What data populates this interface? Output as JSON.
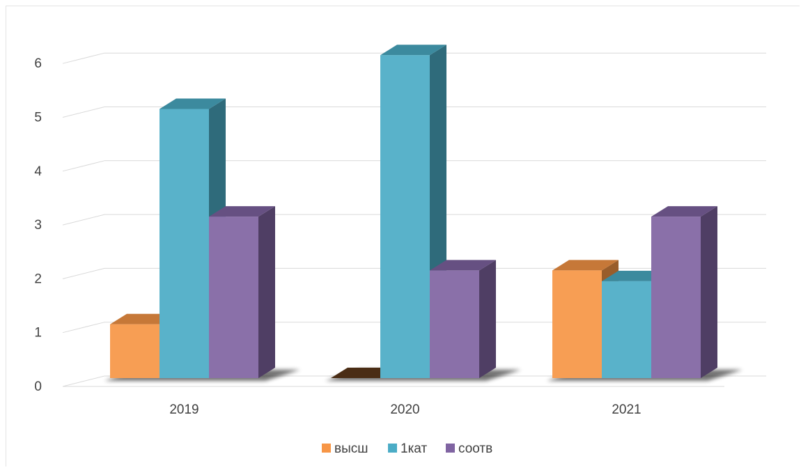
{
  "chart_data": {
    "type": "bar",
    "style": "3d-clustered-column",
    "title": "",
    "xlabel": "",
    "ylabel": "",
    "categories": [
      "2019",
      "2020",
      "2021"
    ],
    "ylim": [
      0,
      6
    ],
    "yticks": [
      "0",
      "1",
      "2",
      "3",
      "4",
      "5",
      "6"
    ],
    "grid": true,
    "legend_position": "bottom",
    "series": [
      {
        "name": "высш",
        "values": [
          1,
          0,
          2
        ],
        "color": "#f79646"
      },
      {
        "name": "1кат",
        "values": [
          5,
          6,
          1.8
        ],
        "color": "#4bacc6"
      },
      {
        "name": "соотв",
        "values": [
          3,
          2,
          3
        ],
        "color": "#8064a2"
      }
    ]
  }
}
